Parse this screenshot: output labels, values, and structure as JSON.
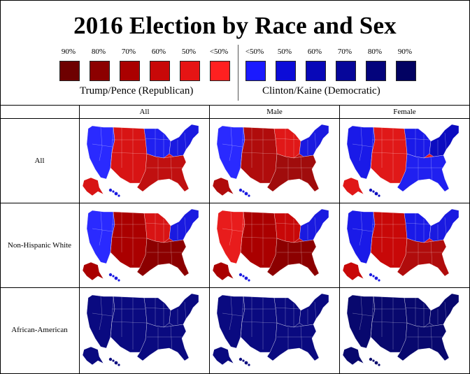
{
  "title": "2016 Election by Race and Sex",
  "legend": {
    "republican": {
      "label": "Trump/Pence (Republican)",
      "levels": [
        "90%",
        "80%",
        "70%",
        "60%",
        "50%",
        "<50%"
      ],
      "colors": [
        "#6e0000",
        "#8c0000",
        "#aa0000",
        "#c80808",
        "#e61414",
        "#ff2020"
      ]
    },
    "democratic": {
      "label": "Clinton/Kaine (Democratic)",
      "levels": [
        "<50%",
        "50%",
        "60%",
        "70%",
        "80%",
        "90%"
      ],
      "colors": [
        "#1a1aff",
        "#0c0cd8",
        "#0808b8",
        "#06069a",
        "#04047c",
        "#020262"
      ]
    }
  },
  "columns": [
    "All",
    "Male",
    "Female"
  ],
  "rows": [
    "All",
    "Non-Hispanic White",
    "African-American"
  ],
  "maps": [
    [
      {
        "base": "#e01818",
        "west": "#2a2aff",
        "northeast": "#1a1ae0",
        "midwest": "#2020f0",
        "south": "#c01010",
        "plains": "#d81414"
      },
      {
        "base": "#c01010",
        "west": "#2a2aff",
        "northeast": "#1a1ae0",
        "midwest": "#e01818",
        "south": "#a00c0c",
        "plains": "#b00c0c"
      },
      {
        "base": "#e81c1c",
        "west": "#1a1ae8",
        "northeast": "#0c0cc0",
        "midwest": "#1a1ae8",
        "south": "#2020f0",
        "plains": "#e01818"
      }
    ],
    [
      {
        "base": "#c81010",
        "west": "#2a2aff",
        "northeast": "#1a1ae0",
        "midwest": "#d81414",
        "south": "#8c0000",
        "plains": "#aa0000"
      },
      {
        "base": "#c81010",
        "west": "#e81c1c",
        "northeast": "#1a1ae0",
        "midwest": "#c80808",
        "south": "#8c0000",
        "plains": "#aa0000"
      },
      {
        "base": "#e01818",
        "west": "#1a1ae8",
        "northeast": "#1a1ae0",
        "midwest": "#1a1ae8",
        "south": "#b00c0c",
        "plains": "#c80808"
      }
    ],
    [
      {
        "base": "#0a0a80",
        "west": "#0a0a80",
        "northeast": "#0a0a80",
        "midwest": "#0a0a80",
        "south": "#0a0a80",
        "plains": "#0a0a80"
      },
      {
        "base": "#0a0a80",
        "west": "#0a0a80",
        "northeast": "#0a0a80",
        "midwest": "#0a0a80",
        "south": "#0a0a80",
        "plains": "#0a0a80"
      },
      {
        "base": "#08086e",
        "west": "#08086e",
        "northeast": "#08086e",
        "midwest": "#08086e",
        "south": "#08086e",
        "plains": "#08086e"
      }
    ]
  ]
}
